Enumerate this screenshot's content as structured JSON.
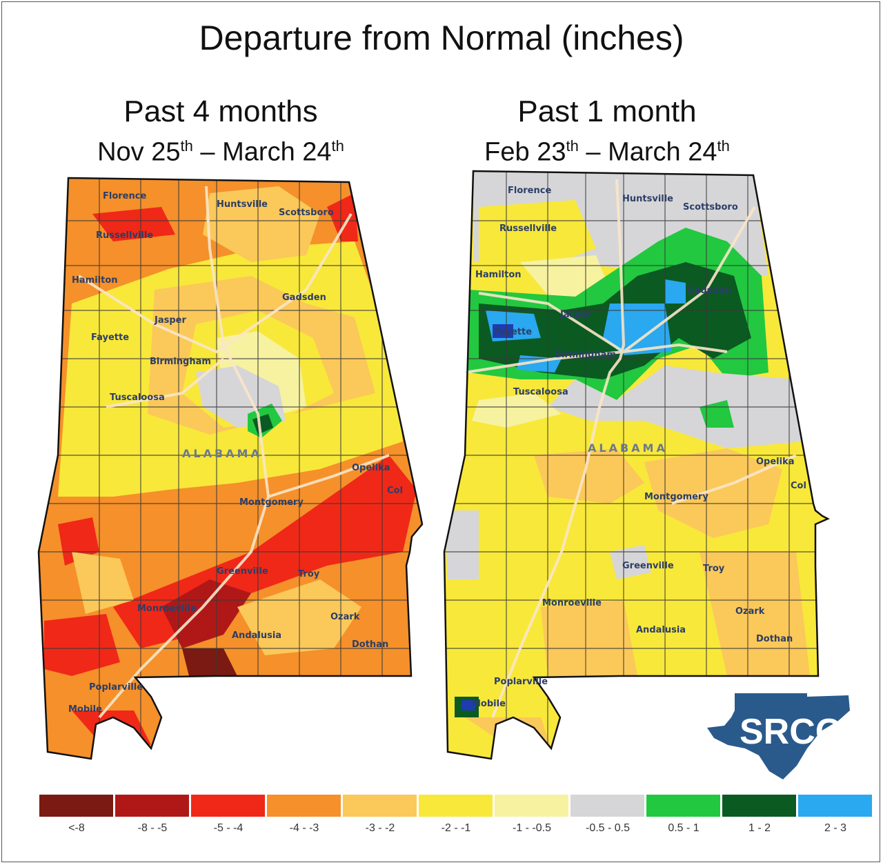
{
  "title": "Departure from Normal (inches)",
  "panels": [
    {
      "heading": "Past 4 months",
      "range_start": "Nov 25",
      "range_start_sup": "th",
      "dash": " – ",
      "range_end": "March 24",
      "range_end_sup": "th"
    },
    {
      "heading": "Past 1 month",
      "range_start": "Feb 23",
      "range_start_sup": "th",
      "dash": " – ",
      "range_end": "March 24",
      "range_end_sup": "th"
    }
  ],
  "map_labels": {
    "state": "ALABAMA",
    "florence": "Florence",
    "huntsville": "Huntsville",
    "scottsboro": "Scottsboro",
    "russellville": "Russellville",
    "hamilton": "Hamilton",
    "gadsden": "Gadsden",
    "jasper": "Jasper",
    "fayette": "Fayette",
    "birmingham": "Birmingham",
    "tuscaloosa": "Tuscaloosa",
    "opelika": "Opelika",
    "columbus": "Col",
    "montgomery": "Montgomery",
    "greenville": "Greenville",
    "troy": "Troy",
    "monroeville": "Monroeville",
    "ozark": "Ozark",
    "andalusia": "Andalusia",
    "dothan": "Dothan",
    "poplarville": "Poplarville",
    "mobile": "Mobile"
  },
  "legend": [
    {
      "label": "<-8",
      "color": "#7a1a12"
    },
    {
      "label": "-8 - -5",
      "color": "#b01818"
    },
    {
      "label": "-5 - -4",
      "color": "#f02818"
    },
    {
      "label": "-4 - -3",
      "color": "#f5902a"
    },
    {
      "label": "-3 - -2",
      "color": "#fbc85a"
    },
    {
      "label": "-2 - -1",
      "color": "#f8e83a"
    },
    {
      "label": "-1 - -0.5",
      "color": "#f6f2a0"
    },
    {
      "label": "-0.5 - 0.5",
      "color": "#d6d6d8"
    },
    {
      "label": "0.5 - 1",
      "color": "#22c840"
    },
    {
      "label": "1 - 2",
      "color": "#0a5a22"
    },
    {
      "label": "2 - 3",
      "color": "#2aa8f0"
    }
  ],
  "logo_text": "SRCC",
  "colors": {
    "road": "#fbe6c8",
    "county_line": "#3a3a3a",
    "logo": "#2a5a8c"
  }
}
